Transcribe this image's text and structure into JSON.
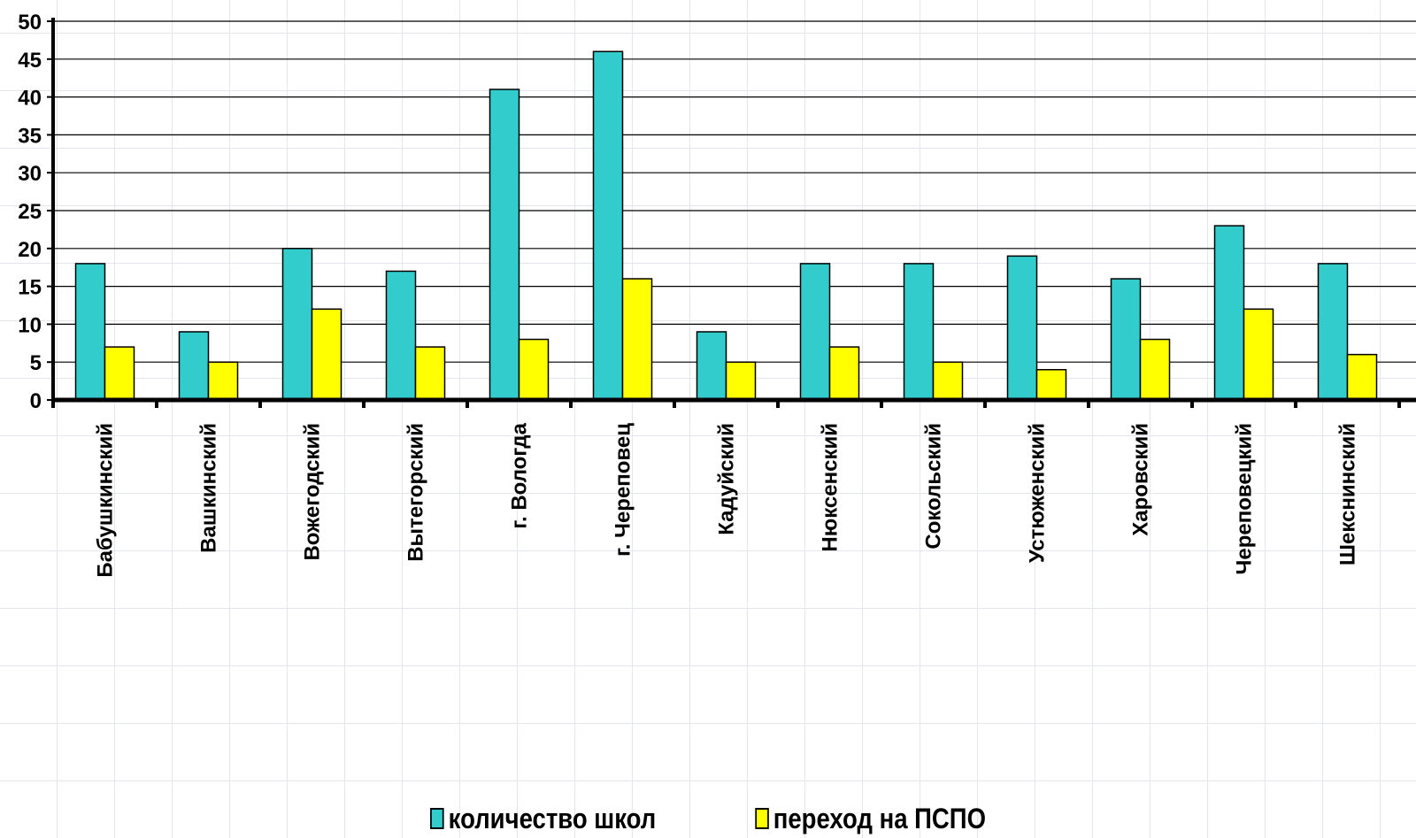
{
  "chart_data": {
    "type": "bar",
    "categories": [
      "Бабушкинский",
      "Вашкинский",
      "Вожегодский",
      "Вытегорский",
      "г. Вологда",
      "г. Череповец",
      "Кадуйский",
      "Нюксенский",
      "Сокольский",
      "Устюженский",
      "Харовский",
      "Череповецкий",
      "Шекснинский"
    ],
    "series": [
      {
        "name": "количество школ",
        "color": "#33CCCC",
        "values": [
          18,
          9,
          20,
          17,
          41,
          46,
          9,
          18,
          18,
          19,
          16,
          23,
          18
        ]
      },
      {
        "name": "переход на ПСПО",
        "color": "#FFFF00",
        "values": [
          7,
          5,
          12,
          7,
          8,
          16,
          5,
          7,
          5,
          4,
          8,
          12,
          6
        ]
      }
    ],
    "ylim": [
      0,
      50
    ],
    "yticks": [
      0,
      5,
      10,
      15,
      20,
      25,
      30,
      35,
      40,
      45,
      50
    ],
    "grid": true,
    "legend_position": "bottom"
  }
}
